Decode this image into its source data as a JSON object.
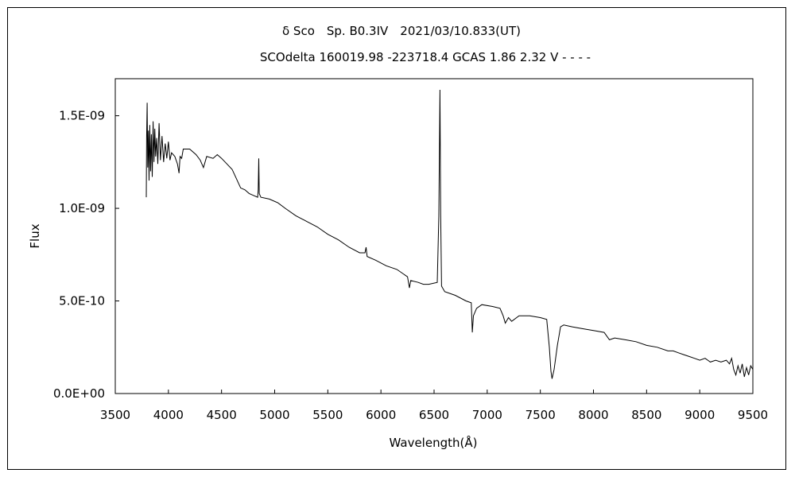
{
  "chart_data": {
    "type": "line",
    "title": "δ Sco　Sp. B0.3IV　2021/03/10.833(UT)",
    "subtitle": "SCOdelta 160019.98 -223718.4 GCAS 1.86 2.32 V - - - -",
    "xlabel": "Wavelength(Å)",
    "ylabel": "Flux",
    "xlim": [
      3500,
      9500
    ],
    "ylim": [
      0,
      1.7e-09
    ],
    "xticks": [
      3500,
      4000,
      4500,
      5000,
      5500,
      6000,
      6500,
      7000,
      7500,
      8000,
      8500,
      9000,
      9500
    ],
    "xtick_labels": [
      "3500",
      "4000",
      "4500",
      "5000",
      "5500",
      "6000",
      "6500",
      "7000",
      "7500",
      "8000",
      "8500",
      "9000",
      "9500"
    ],
    "yticks": [
      0,
      5e-10,
      1e-09,
      1.5e-09
    ],
    "ytick_labels": [
      "0.0E+00",
      "5.0E-10",
      "1.0E-09",
      "1.5E-09"
    ],
    "grid": false,
    "series": [
      {
        "name": "Flux",
        "color": "#000000",
        "x_unit": "Angstrom",
        "y_scale": 1e-10,
        "points": [
          [
            3792,
            10.6
          ],
          [
            3795,
            13.8
          ],
          [
            3800,
            15.7
          ],
          [
            3805,
            12.2
          ],
          [
            3812,
            14.2
          ],
          [
            3818,
            11.5
          ],
          [
            3825,
            14.5
          ],
          [
            3832,
            12.0
          ],
          [
            3840,
            14.0
          ],
          [
            3848,
            11.7
          ],
          [
            3856,
            14.7
          ],
          [
            3864,
            12.5
          ],
          [
            3872,
            14.3
          ],
          [
            3880,
            12.8
          ],
          [
            3890,
            13.8
          ],
          [
            3900,
            12.4
          ],
          [
            3912,
            14.6
          ],
          [
            3925,
            12.6
          ],
          [
            3940,
            13.9
          ],
          [
            3955,
            12.5
          ],
          [
            3970,
            13.5
          ],
          [
            3985,
            12.7
          ],
          [
            4000,
            13.6
          ],
          [
            4015,
            12.6
          ],
          [
            4030,
            13.0
          ],
          [
            4060,
            12.8
          ],
          [
            4085,
            12.4
          ],
          [
            4100,
            11.9
          ],
          [
            4110,
            12.8
          ],
          [
            4125,
            12.7
          ],
          [
            4140,
            13.2
          ],
          [
            4200,
            13.2
          ],
          [
            4260,
            12.9
          ],
          [
            4300,
            12.6
          ],
          [
            4330,
            12.2
          ],
          [
            4360,
            12.8
          ],
          [
            4420,
            12.7
          ],
          [
            4460,
            12.9
          ],
          [
            4500,
            12.7
          ],
          [
            4550,
            12.4
          ],
          [
            4600,
            12.1
          ],
          [
            4640,
            11.6
          ],
          [
            4680,
            11.1
          ],
          [
            4720,
            11.0
          ],
          [
            4760,
            10.8
          ],
          [
            4800,
            10.7
          ],
          [
            4840,
            10.6
          ],
          [
            4845,
            11.0
          ],
          [
            4850,
            12.7
          ],
          [
            4855,
            10.8
          ],
          [
            4870,
            10.6
          ],
          [
            4950,
            10.5
          ],
          [
            5030,
            10.3
          ],
          [
            5100,
            10.0
          ],
          [
            5200,
            9.6
          ],
          [
            5300,
            9.3
          ],
          [
            5400,
            9.0
          ],
          [
            5500,
            8.6
          ],
          [
            5600,
            8.3
          ],
          [
            5700,
            7.9
          ],
          [
            5800,
            7.6
          ],
          [
            5850,
            7.6
          ],
          [
            5860,
            7.9
          ],
          [
            5870,
            7.4
          ],
          [
            5950,
            7.2
          ],
          [
            6050,
            6.9
          ],
          [
            6150,
            6.7
          ],
          [
            6250,
            6.3
          ],
          [
            6268,
            5.7
          ],
          [
            6280,
            6.1
          ],
          [
            6350,
            6.0
          ],
          [
            6400,
            5.9
          ],
          [
            6450,
            5.9
          ],
          [
            6530,
            6.0
          ],
          [
            6545,
            9.6
          ],
          [
            6555,
            16.4
          ],
          [
            6562,
            9.7
          ],
          [
            6570,
            5.8
          ],
          [
            6600,
            5.5
          ],
          [
            6700,
            5.3
          ],
          [
            6800,
            5.0
          ],
          [
            6850,
            4.9
          ],
          [
            6860,
            3.3
          ],
          [
            6870,
            4.2
          ],
          [
            6900,
            4.6
          ],
          [
            6950,
            4.8
          ],
          [
            7050,
            4.7
          ],
          [
            7120,
            4.6
          ],
          [
            7150,
            4.2
          ],
          [
            7170,
            3.8
          ],
          [
            7200,
            4.1
          ],
          [
            7230,
            3.9
          ],
          [
            7300,
            4.2
          ],
          [
            7400,
            4.2
          ],
          [
            7500,
            4.1
          ],
          [
            7560,
            4.0
          ],
          [
            7585,
            2.5
          ],
          [
            7600,
            1.2
          ],
          [
            7610,
            0.8
          ],
          [
            7630,
            1.3
          ],
          [
            7660,
            2.6
          ],
          [
            7690,
            3.6
          ],
          [
            7720,
            3.7
          ],
          [
            7800,
            3.6
          ],
          [
            7900,
            3.5
          ],
          [
            8000,
            3.4
          ],
          [
            8100,
            3.3
          ],
          [
            8150,
            2.9
          ],
          [
            8200,
            3.0
          ],
          [
            8300,
            2.9
          ],
          [
            8400,
            2.8
          ],
          [
            8500,
            2.6
          ],
          [
            8600,
            2.5
          ],
          [
            8700,
            2.3
          ],
          [
            8750,
            2.3
          ],
          [
            8800,
            2.2
          ],
          [
            8850,
            2.1
          ],
          [
            8900,
            2.0
          ],
          [
            8950,
            1.9
          ],
          [
            9000,
            1.8
          ],
          [
            9050,
            1.9
          ],
          [
            9100,
            1.7
          ],
          [
            9150,
            1.8
          ],
          [
            9200,
            1.7
          ],
          [
            9250,
            1.8
          ],
          [
            9280,
            1.6
          ],
          [
            9300,
            1.9
          ],
          [
            9320,
            1.3
          ],
          [
            9340,
            1.0
          ],
          [
            9360,
            1.5
          ],
          [
            9380,
            1.1
          ],
          [
            9400,
            1.6
          ],
          [
            9420,
            0.9
          ],
          [
            9440,
            1.4
          ],
          [
            9460,
            1.0
          ],
          [
            9480,
            1.5
          ],
          [
            9500,
            1.3
          ]
        ]
      }
    ]
  }
}
